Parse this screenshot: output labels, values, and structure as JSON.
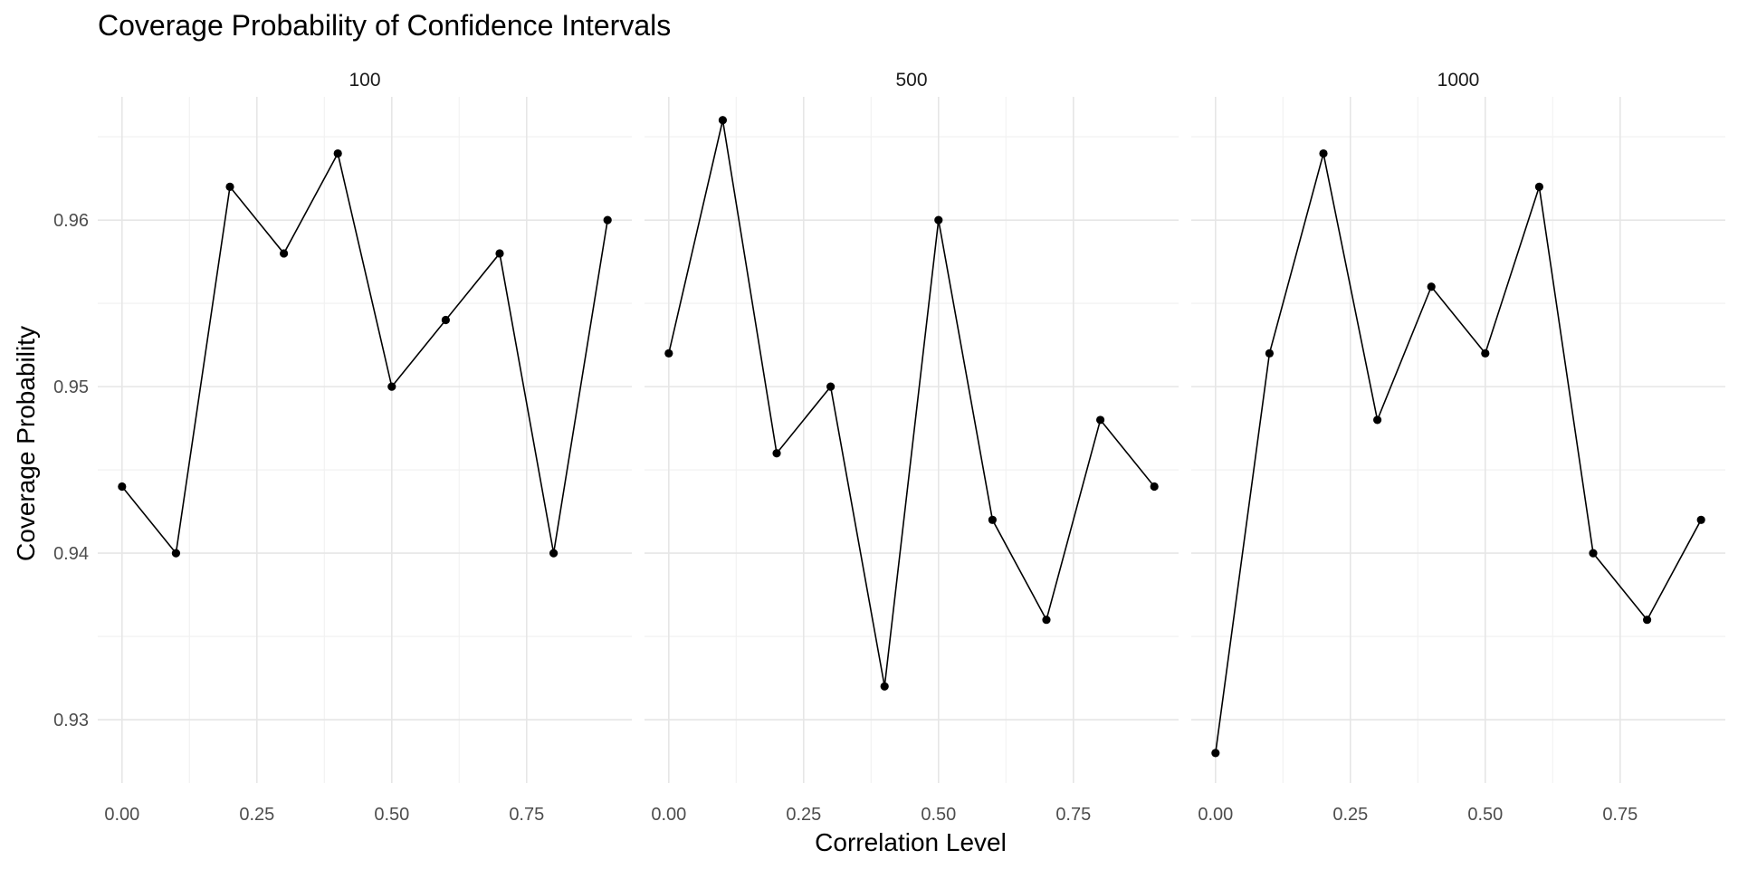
{
  "chart_data": {
    "type": "line",
    "title": "Coverage Probability of Confidence Intervals",
    "xlabel": "Correlation Level",
    "ylabel": "Coverage Probability",
    "x_ticks": [
      "0.00",
      "0.25",
      "0.50",
      "0.75"
    ],
    "y_ticks": [
      "0.93",
      "0.94",
      "0.95",
      "0.96"
    ],
    "xlim": [
      -0.045,
      0.945
    ],
    "ylim": [
      0.9262,
      0.9674
    ],
    "grid": true,
    "legend": "none",
    "line_color": "#000000",
    "point_color": "#000000",
    "grid_major_color": "#e6e6e6",
    "grid_minor_color": "#f2f2f2",
    "x": [
      0.0,
      0.1,
      0.2,
      0.3,
      0.4,
      0.5,
      0.6,
      0.7,
      0.8,
      0.9
    ],
    "panels": [
      {
        "label": "100",
        "values": [
          0.944,
          0.94,
          0.962,
          0.958,
          0.964,
          0.95,
          0.954,
          0.958,
          0.94,
          0.96
        ]
      },
      {
        "label": "500",
        "values": [
          0.952,
          0.966,
          0.946,
          0.95,
          0.932,
          0.96,
          0.942,
          0.936,
          0.948,
          0.944
        ]
      },
      {
        "label": "1000",
        "values": [
          0.928,
          0.952,
          0.964,
          0.948,
          0.956,
          0.952,
          0.962,
          0.94,
          0.936,
          0.942
        ]
      }
    ]
  }
}
